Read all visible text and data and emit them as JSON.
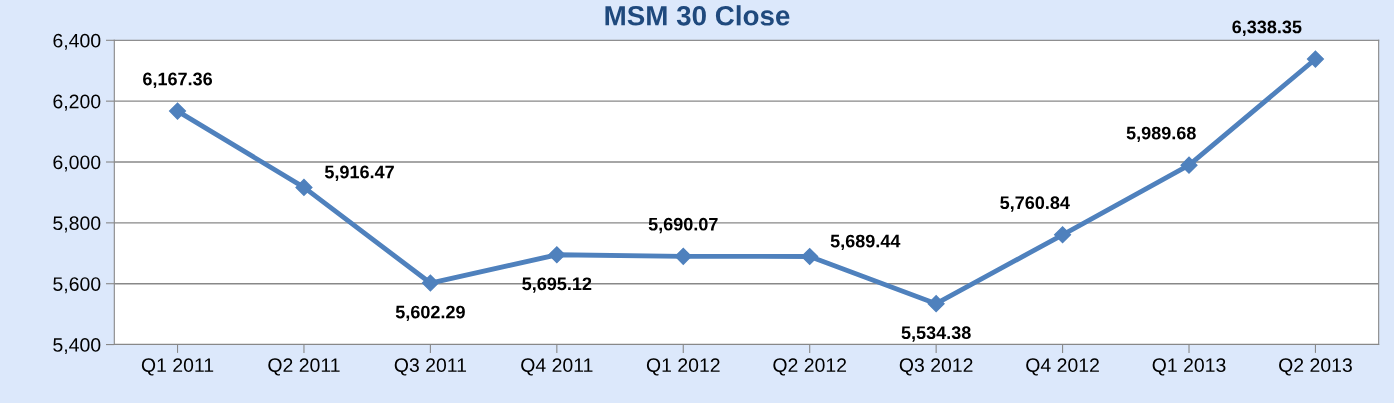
{
  "chart_data": {
    "type": "line",
    "title": "MSM 30 Close",
    "categories": [
      "Q1 2011",
      "Q2 2011",
      "Q3 2011",
      "Q4 2011",
      "Q1 2012",
      "Q2 2012",
      "Q3 2012",
      "Q4 2012",
      "Q1 2013",
      "Q2 2013"
    ],
    "series": [
      {
        "color": "#4f81bd",
        "values": [
          6167.36,
          5916.47,
          5602.29,
          5695.12,
          5690.07,
          5689.44,
          5534.38,
          5760.84,
          5989.68,
          6338.35
        ]
      }
    ],
    "value_labels": [
      "6,167.36",
      "5,916.47",
      "5,602.29",
      "5,695.12",
      "5,690.07",
      "5,689.44",
      "5,534.38",
      "5,760.84",
      "5,989.68",
      "6,338.35"
    ],
    "ylim": [
      5400,
      6400
    ],
    "yticks": [
      {
        "value": 5400,
        "label": "5,400"
      },
      {
        "value": 5600,
        "label": "5,600"
      },
      {
        "value": 5800,
        "label": "5,800"
      },
      {
        "value": 6000,
        "label": "6,000"
      },
      {
        "value": 6200,
        "label": "6,200"
      },
      {
        "value": 6400,
        "label": "6,400"
      }
    ],
    "grid": "y",
    "marker": "diamond",
    "line_style": "solid",
    "legend": false
  }
}
